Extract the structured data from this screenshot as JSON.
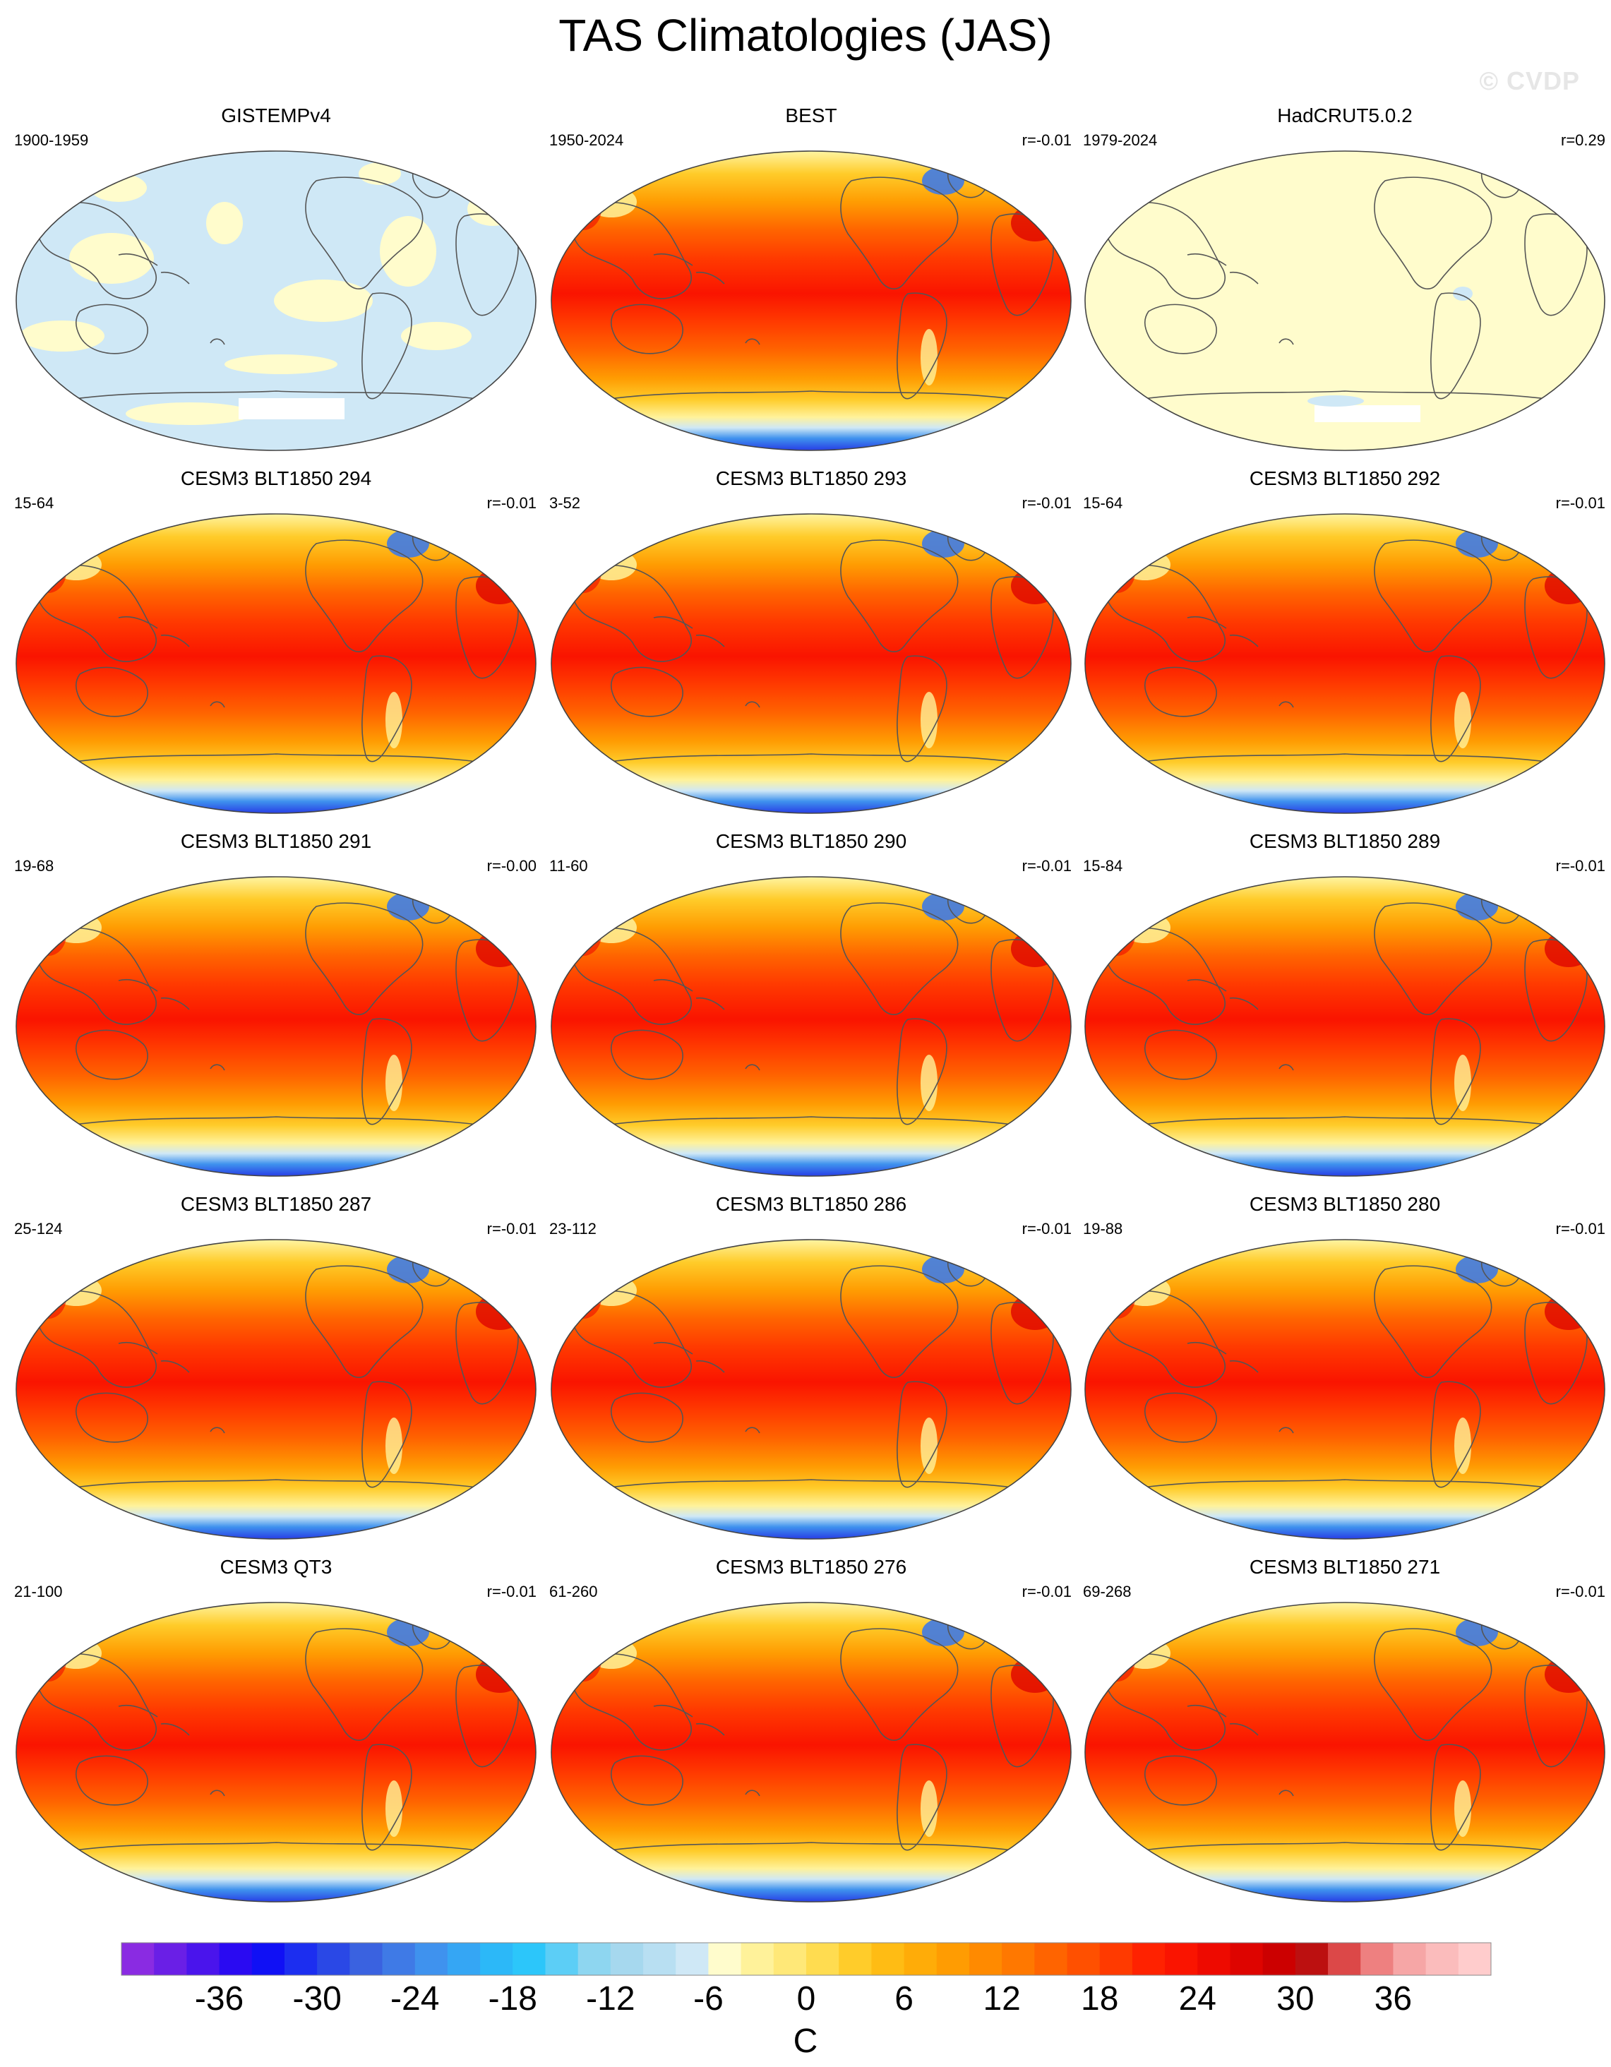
{
  "title": "TAS Climatologies (JAS)",
  "watermark": "© CVDP",
  "panels": [
    {
      "title": "GISTEMPv4",
      "years": "1900-1959",
      "r": "",
      "style": "mask_blue"
    },
    {
      "title": "BEST",
      "years": "1950-2024",
      "r": "r=-0.01",
      "style": "field"
    },
    {
      "title": "HadCRUT5.0.2",
      "years": "1979-2024",
      "r": "r=0.29",
      "style": "mask_yellow"
    },
    {
      "title": "CESM3 BLT1850 294",
      "years": "15-64",
      "r": "r=-0.01",
      "style": "field"
    },
    {
      "title": "CESM3 BLT1850 293",
      "years": "3-52",
      "r": "r=-0.01",
      "style": "field"
    },
    {
      "title": "CESM3 BLT1850 292",
      "years": "15-64",
      "r": "r=-0.01",
      "style": "field"
    },
    {
      "title": "CESM3 BLT1850 291",
      "years": "19-68",
      "r": "r=-0.00",
      "style": "field"
    },
    {
      "title": "CESM3 BLT1850 290",
      "years": "11-60",
      "r": "r=-0.01",
      "style": "field"
    },
    {
      "title": "CESM3 BLT1850 289",
      "years": "15-84",
      "r": "r=-0.01",
      "style": "field"
    },
    {
      "title": "CESM3 BLT1850 287",
      "years": "25-124",
      "r": "r=-0.01",
      "style": "field"
    },
    {
      "title": "CESM3 BLT1850 286",
      "years": "23-112",
      "r": "r=-0.01",
      "style": "field"
    },
    {
      "title": "CESM3 BLT1850 280",
      "years": "19-88",
      "r": "r=-0.01",
      "style": "field"
    },
    {
      "title": "CESM3 QT3",
      "years": "21-100",
      "r": "r=-0.01",
      "style": "field"
    },
    {
      "title": "CESM3 BLT1850 276",
      "years": "61-260",
      "r": "r=-0.01",
      "style": "field"
    },
    {
      "title": "CESM3 BLT1850 271",
      "years": "69-268",
      "r": "r=-0.01",
      "style": "field"
    }
  ],
  "colorbar": {
    "unit": "C",
    "min": -42,
    "max": 42,
    "step": 2,
    "tick_labels": [
      "-36",
      "-30",
      "-24",
      "-18",
      "-12",
      "-6",
      "0",
      "6",
      "12",
      "18",
      "24",
      "30",
      "36"
    ],
    "colors": [
      "#8a2be2",
      "#6a1fe6",
      "#4a14ec",
      "#2a0af2",
      "#1010f5",
      "#1c2ef0",
      "#2a48e6",
      "#3a62e0",
      "#3f7ae6",
      "#3f92ee",
      "#35a6f4",
      "#2cb8f8",
      "#2cc6fa",
      "#5ccef6",
      "#8ed6f0",
      "#a6d8ee",
      "#b8dff2",
      "#cfe8f6",
      "#fffccc",
      "#fff29a",
      "#ffe878",
      "#ffdc50",
      "#ffcc2a",
      "#ffbc14",
      "#ffac08",
      "#ff9c02",
      "#ff8a00",
      "#ff7800",
      "#ff6400",
      "#ff5000",
      "#ff3a00",
      "#ff2200",
      "#fa1400",
      "#ee0a00",
      "#de0400",
      "#cc0000",
      "#bc1010",
      "#dc4848",
      "#ee8080",
      "#f6a6a6",
      "#fbbcbc",
      "#ffcccc"
    ]
  }
}
